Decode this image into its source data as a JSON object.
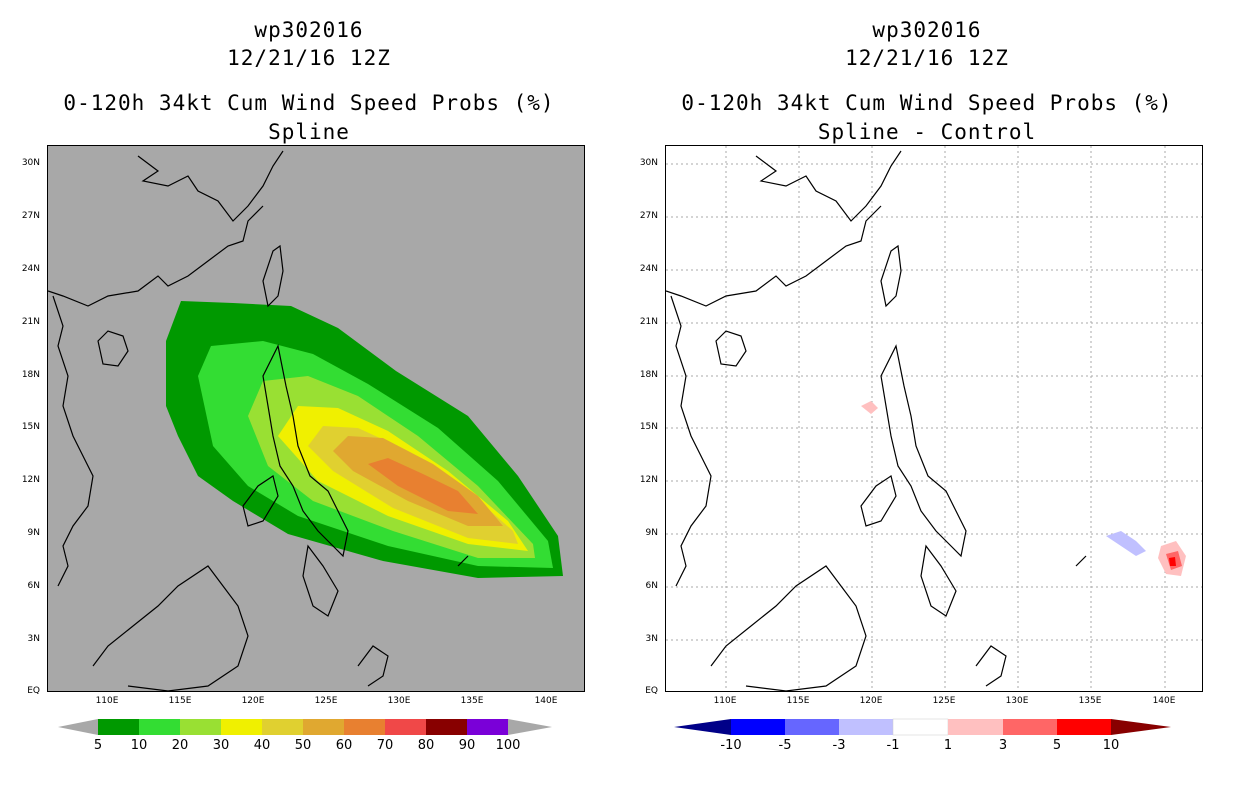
{
  "panels": [
    {
      "title_line1": "wp302016",
      "title_line2": "12/21/16 12Z",
      "title_line3": "0-120h 34kt Cum Wind Speed Probs (%)",
      "title_line4": "Spline"
    },
    {
      "title_line1": "wp302016",
      "title_line2": "12/21/16 12Z",
      "title_line3": "0-120h 34kt Cum Wind Speed Probs (%)",
      "title_line4": "Spline - Control"
    }
  ],
  "lat_labels": [
    "30N",
    "27N",
    "24N",
    "21N",
    "18N",
    "15N",
    "12N",
    "9N",
    "6N",
    "3N",
    "EQ"
  ],
  "lon_labels": [
    "110E",
    "115E",
    "120E",
    "125E",
    "130E",
    "135E",
    "140E"
  ],
  "colorbar_left": {
    "labels": [
      "5",
      "10",
      "20",
      "30",
      "40",
      "50",
      "60",
      "70",
      "80",
      "90",
      "100"
    ],
    "colors": [
      "#009900",
      "#33dd33",
      "#99e033",
      "#f0f000",
      "#e0d030",
      "#e0a830",
      "#e88030",
      "#f04848",
      "#880000",
      "#7a00d8"
    ],
    "end_color": "#a8a8a8"
  },
  "colorbar_right": {
    "labels": [
      "-10",
      "-5",
      "-3",
      "-1",
      "1",
      "3",
      "5",
      "10"
    ],
    "colors": [
      "#0000ff",
      "#6666ff",
      "#c0c0ff",
      "#ffffff",
      "#ffc0c0",
      "#ff6666",
      "#ff0000"
    ],
    "low_end_color": "#000088",
    "high_end_color": "#880000"
  },
  "map_left": {
    "background": "#a8a8a8",
    "contours": [
      "#009900",
      "#33dd33",
      "#99e033",
      "#f0f000",
      "#e0d030",
      "#e0a830",
      "#e88030"
    ]
  },
  "map_right": {
    "background": "#ffffff",
    "grid": "dotted"
  }
}
